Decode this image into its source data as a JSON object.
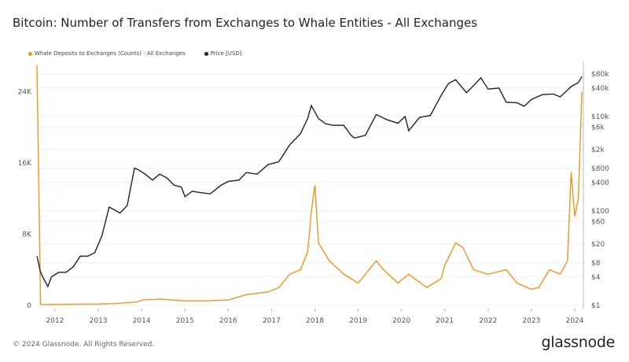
{
  "title": "Bitcoin: Number of Transfers from Exchanges to Whale Entities - All Exchanges",
  "footer": "© 2024 Glassnode. All Rights Reserved.",
  "logo": "glassnode",
  "colors": {
    "deposits": "#f7931a",
    "price": "#222222",
    "grid": "#eeeeee"
  },
  "chart_data": {
    "type": "line",
    "title": "Bitcoin: Number of Transfers from Exchanges to Whale Entities - All Exchanges",
    "legend_position": "top-left",
    "grid": true,
    "x_ticks": [
      "2012",
      "2013",
      "2014",
      "2015",
      "2016",
      "2017",
      "2018",
      "2019",
      "2020",
      "2021",
      "2022",
      "2023",
      "2024"
    ],
    "x_range": [
      "2011-08",
      "2024-03"
    ],
    "y_left": {
      "ticks": [
        "0",
        "8K",
        "16K",
        "24K"
      ],
      "tick_values": [
        0,
        8000,
        16000,
        24000
      ],
      "range": [
        0,
        27000
      ],
      "scale": "linear"
    },
    "y_right": {
      "ticks": [
        "$1",
        "$4",
        "$8",
        "$20",
        "$60",
        "$100",
        "$400",
        "$800",
        "$2k",
        "$6k",
        "$10k",
        "$40k",
        "$80k"
      ],
      "tick_values": [
        1,
        4,
        8,
        20,
        60,
        100,
        400,
        800,
        2000,
        6000,
        10000,
        40000,
        80000
      ],
      "range": [
        1,
        100000
      ],
      "scale": "log"
    },
    "series": [
      {
        "name": "Whale Deposits to Exchanges (Counts) - All Exchanges",
        "axis": "left",
        "color": "#f7931a",
        "x": [
          "2011-08",
          "2011-09",
          "2012-01",
          "2012-06",
          "2013-01",
          "2013-06",
          "2013-12",
          "2014-01",
          "2014-06",
          "2015-01",
          "2015-06",
          "2016-01",
          "2016-06",
          "2016-12",
          "2017-03",
          "2017-06",
          "2017-09",
          "2017-11",
          "2017-12",
          "2018-01",
          "2018-02",
          "2018-05",
          "2018-09",
          "2019-01",
          "2019-06",
          "2019-08",
          "2019-12",
          "2020-03",
          "2020-08",
          "2020-12",
          "2021-01",
          "2021-04",
          "2021-06",
          "2021-09",
          "2022-01",
          "2022-06",
          "2022-09",
          "2023-01",
          "2023-03",
          "2023-06",
          "2023-09",
          "2023-11",
          "2023-12",
          "2024-01",
          "2024-02",
          "2024-03"
        ],
        "values": [
          27000,
          100,
          100,
          120,
          150,
          200,
          400,
          600,
          700,
          500,
          500,
          600,
          1200,
          1500,
          2000,
          3500,
          4000,
          6000,
          10500,
          13500,
          7000,
          5000,
          3500,
          2500,
          5000,
          4000,
          2500,
          3500,
          2000,
          3000,
          4500,
          7000,
          6500,
          4000,
          3500,
          4000,
          2500,
          1800,
          2000,
          4000,
          3500,
          5000,
          15000,
          10000,
          12000,
          24000
        ]
      },
      {
        "name": "Price [USD]",
        "axis": "right",
        "color": "#222222",
        "x": [
          "2011-08",
          "2011-09",
          "2011-10",
          "2011-11",
          "2011-12",
          "2012-02",
          "2012-04",
          "2012-06",
          "2012-08",
          "2012-10",
          "2012-12",
          "2013-02",
          "2013-04",
          "2013-05",
          "2013-07",
          "2013-09",
          "2013-11",
          "2013-12",
          "2014-02",
          "2014-04",
          "2014-06",
          "2014-08",
          "2014-10",
          "2014-12",
          "2015-01",
          "2015-03",
          "2015-06",
          "2015-08",
          "2015-11",
          "2016-01",
          "2016-04",
          "2016-06",
          "2016-09",
          "2016-12",
          "2017-03",
          "2017-06",
          "2017-09",
          "2017-11",
          "2017-12",
          "2018-02",
          "2018-04",
          "2018-06",
          "2018-09",
          "2018-11",
          "2018-12",
          "2019-03",
          "2019-06",
          "2019-09",
          "2019-12",
          "2020-02",
          "2020-03",
          "2020-06",
          "2020-09",
          "2020-12",
          "2021-02",
          "2021-04",
          "2021-07",
          "2021-09",
          "2021-11",
          "2022-01",
          "2022-04",
          "2022-06",
          "2022-09",
          "2022-11",
          "2023-01",
          "2023-04",
          "2023-07",
          "2023-09",
          "2023-12",
          "2024-02",
          "2024-03"
        ],
        "values": [
          11,
          5,
          3.5,
          2.5,
          4,
          5,
          5,
          6.5,
          11,
          11,
          13,
          30,
          120,
          110,
          90,
          130,
          800,
          750,
          600,
          450,
          600,
          500,
          350,
          320,
          200,
          260,
          240,
          230,
          350,
          420,
          450,
          650,
          600,
          950,
          1100,
          2500,
          4300,
          9000,
          17000,
          9000,
          7000,
          6500,
          6500,
          4000,
          3500,
          4000,
          11000,
          8500,
          7200,
          10000,
          5000,
          9500,
          10500,
          28000,
          50000,
          60000,
          32000,
          45000,
          66000,
          38000,
          40000,
          20000,
          19500,
          16500,
          23000,
          29000,
          30000,
          26000,
          43000,
          52000,
          70000
        ]
      }
    ]
  }
}
